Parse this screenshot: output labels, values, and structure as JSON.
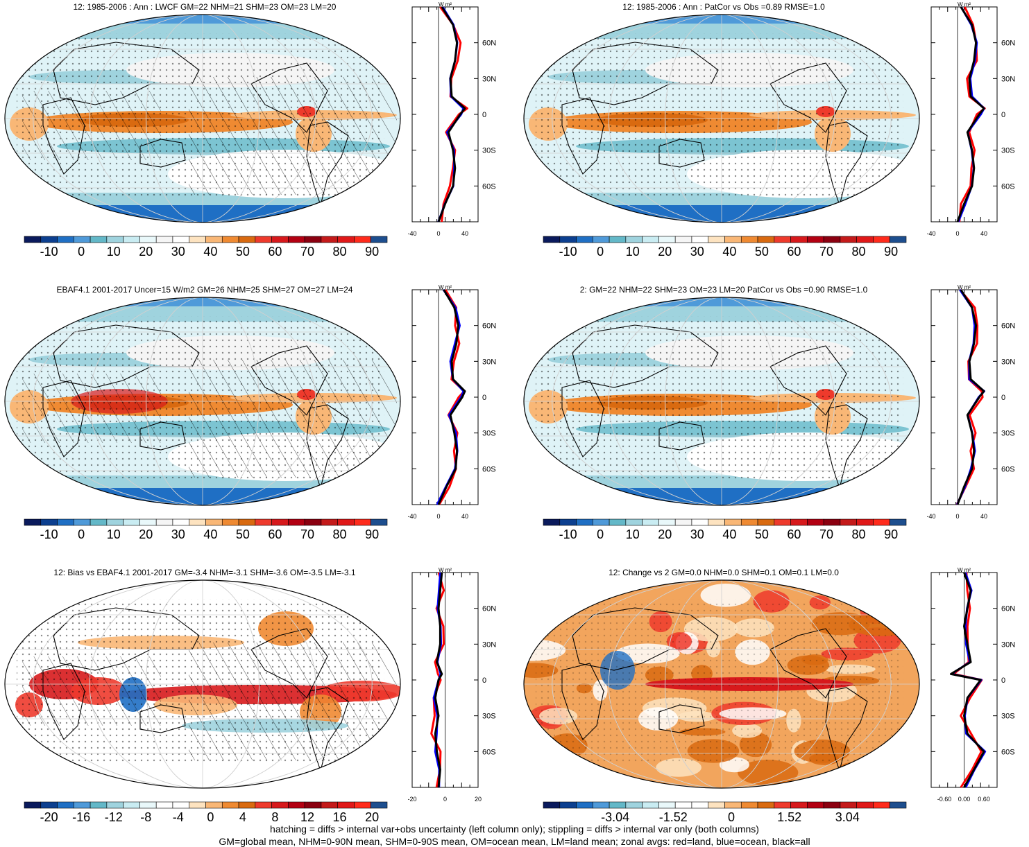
{
  "panels": [
    {
      "id": "p1",
      "title": "12: 1985-2006 : Ann : LWCF GM=22 NHM=21 SHM=23 OM=23 LM=20",
      "scheme": "main",
      "ticks": [
        "-10",
        "0",
        "10",
        "20",
        "30",
        "40",
        "50",
        "60",
        "70",
        "80",
        "90"
      ],
      "zx": [
        "-40",
        "0",
        "40"
      ],
      "zxlim": [
        -40,
        60
      ],
      "hatch": true,
      "variant": 0
    },
    {
      "id": "p2",
      "title": "12: 1985-2006 : Ann : PatCor vs Obs =0.89 RMSE=1.0",
      "scheme": "main",
      "ticks": [
        "-10",
        "0",
        "10",
        "20",
        "30",
        "40",
        "50",
        "60",
        "70",
        "80",
        "90"
      ],
      "zx": [
        "-40",
        "0",
        "40"
      ],
      "zxlim": [
        -40,
        60
      ],
      "hatch": false,
      "variant": 1
    },
    {
      "id": "p3",
      "title": "EBAF4.1 2001-2017 Uncer=15 W/m2 GM=26 NHM=25 SHM=27 OM=27 LM=24",
      "scheme": "main",
      "ticks": [
        "-10",
        "0",
        "10",
        "20",
        "30",
        "40",
        "50",
        "60",
        "70",
        "80",
        "90"
      ],
      "zx": [
        "-40",
        "0",
        "40"
      ],
      "zxlim": [
        -40,
        60
      ],
      "hatch": true,
      "variant": 2
    },
    {
      "id": "p4",
      "title": "2: GM=22 NHM=22 SHM=23 OM=23 LM=20 PatCor vs Obs =0.90 RMSE=1.0",
      "scheme": "main",
      "ticks": [
        "-10",
        "0",
        "10",
        "20",
        "30",
        "40",
        "50",
        "60",
        "70",
        "80",
        "90"
      ],
      "zx": [
        "-40",
        "0",
        "40"
      ],
      "zxlim": [
        -40,
        60
      ],
      "hatch": false,
      "variant": 3
    },
    {
      "id": "p5",
      "title": "12: Bias vs EBAF4.1 2001-2017 GM=-3.4 NHM=-3.1 SHM=-3.6 OM=-3.5 LM=-3.1",
      "scheme": "diff",
      "ticks": [
        "-20",
        "-16",
        "-12",
        "-8",
        "-4",
        "0",
        "4",
        "8",
        "12",
        "16",
        "20"
      ],
      "zx": [
        "-20",
        "0",
        "20"
      ],
      "zxlim": [
        -20,
        20
      ],
      "hatch": true,
      "variant": 4
    },
    {
      "id": "p6",
      "title": "12: Change vs 2 GM=0.0 NHM=0.0 SHM=0.1 OM=0.1 LM=0.0",
      "scheme": "change",
      "ticks": [
        "-3.04",
        "-1.52",
        "0",
        "1.52",
        "3.04"
      ],
      "zx": [
        "-0.60",
        "0.00",
        "0.60"
      ],
      "zxlim": [
        -1,
        1
      ],
      "hatch": false,
      "variant": 5
    }
  ],
  "lat_labels": [
    "60N",
    "30N",
    "0",
    "30S",
    "60S"
  ],
  "zonal_unit": "W m²",
  "colors": {
    "main": [
      "#0a1a5c",
      "#0c3f8f",
      "#1f6fc4",
      "#4f9ad9",
      "#63b8c8",
      "#9fd3de",
      "#c9ecf2",
      "#e9f8fa",
      "#f5f5f5",
      "#ffffff",
      "#fde3c0",
      "#f9b776",
      "#ef8a32",
      "#d96a10",
      "#ee3a2c",
      "#d7191c",
      "#b30012",
      "#8b0010",
      "#c41a1a",
      "#e01818",
      "#ff2b1c",
      "#1d4e8e"
    ],
    "diff": [
      "#0a1a5c",
      "#0c3f8f",
      "#1f6fc4",
      "#4f9ad9",
      "#63b8c8",
      "#9fd3de",
      "#c9ecf2",
      "#e9f8fa",
      "#ffffff",
      "#ffffff",
      "#fde3c0",
      "#f9b776",
      "#ef8a32",
      "#d96a10",
      "#ee3a2c",
      "#d7191c",
      "#b30012",
      "#8b0010",
      "#c41a1a",
      "#e01818",
      "#ff2b1c",
      "#1d4e8e"
    ],
    "land": "#ff0000",
    "ocean": "#0000ff",
    "all": "#000000"
  },
  "chart_data": [
    {
      "type": "map",
      "title": "12: 1985-2006 : Ann : LWCF GM=22 NHM=21 SHM=23 OM=23 LM=20",
      "colorbar_ticks": [
        -10,
        0,
        10,
        20,
        30,
        40,
        50,
        60,
        70,
        80,
        90
      ],
      "zonal_xlim": [
        -40,
        60
      ],
      "zonal_lat": [
        -90,
        -75,
        -60,
        -45,
        -30,
        -15,
        0,
        5,
        15,
        30,
        45,
        60,
        75,
        90
      ],
      "zonal_all": [
        0,
        10,
        22,
        25,
        22,
        15,
        33,
        40,
        20,
        18,
        25,
        28,
        22,
        5
      ]
    },
    {
      "type": "map",
      "title": "12: 1985-2006 : Ann : PatCor vs Obs =0.89 RMSE=1.0",
      "colorbar_ticks": [
        -10,
        0,
        10,
        20,
        30,
        40,
        50,
        60,
        70,
        80,
        90
      ],
      "zonal_xlim": [
        -40,
        60
      ],
      "zonal_lat": [
        -90,
        -75,
        -60,
        -45,
        -30,
        -15,
        0,
        5,
        15,
        30,
        45,
        60,
        75,
        90
      ],
      "zonal_all": [
        0,
        10,
        22,
        25,
        22,
        15,
        33,
        40,
        20,
        18,
        25,
        28,
        22,
        5
      ]
    },
    {
      "type": "map",
      "title": "EBAF4.1 2001-2017 Uncer=15 W/m2 GM=26 NHM=25 SHM=27 OM=27 LM=24",
      "colorbar_ticks": [
        -10,
        0,
        10,
        20,
        30,
        40,
        50,
        60,
        70,
        80,
        90
      ],
      "zonal_xlim": [
        -40,
        60
      ],
      "zonal_lat": [
        -90,
        -75,
        -60,
        -45,
        -30,
        -15,
        0,
        5,
        15,
        30,
        45,
        60,
        75,
        90
      ],
      "zonal_all": [
        0,
        12,
        26,
        28,
        24,
        18,
        36,
        40,
        22,
        20,
        27,
        30,
        24,
        8
      ]
    },
    {
      "type": "map",
      "title": "2: GM=22 NHM=22 SHM=23 OM=23 LM=20 PatCor vs Obs =0.90 RMSE=1.0",
      "colorbar_ticks": [
        -10,
        0,
        10,
        20,
        30,
        40,
        50,
        60,
        70,
        80,
        90
      ],
      "zonal_xlim": [
        -40,
        60
      ],
      "zonal_lat": [
        -90,
        -75,
        -60,
        -45,
        -30,
        -15,
        0,
        5,
        15,
        30,
        45,
        60,
        75,
        90
      ],
      "zonal_all": [
        0,
        10,
        22,
        25,
        22,
        15,
        33,
        40,
        20,
        18,
        25,
        28,
        22,
        5
      ]
    },
    {
      "type": "map",
      "title": "12: Bias vs EBAF4.1 2001-2017 GM=-3.4 NHM=-3.1 SHM=-3.6 OM=-3.5 LM=-3.1",
      "colorbar_ticks": [
        -20,
        -16,
        -12,
        -8,
        -4,
        0,
        4,
        8,
        12,
        16,
        20
      ],
      "zonal_xlim": [
        -20,
        20
      ],
      "zonal_lat": [
        -90,
        -75,
        -60,
        -45,
        -30,
        -15,
        0,
        5,
        15,
        30,
        45,
        60,
        75,
        90
      ],
      "zonal_all": [
        -4,
        -3,
        -5,
        -6,
        -4,
        -6,
        -4,
        -2,
        -5,
        -3,
        -3,
        -4,
        -3,
        -2
      ]
    },
    {
      "type": "map",
      "title": "12: Change vs 2 GM=0.0 NHM=0.0 SHM=0.1 OM=0.1 LM=0.0",
      "colorbar_ticks": [
        -3.04,
        -1.52,
        0,
        1.52,
        3.04
      ],
      "zonal_xlim": [
        -1,
        1
      ],
      "zonal_lat": [
        -90,
        -75,
        -60,
        -45,
        -30,
        -15,
        0,
        5,
        15,
        30,
        45,
        60,
        75,
        90
      ],
      "zonal_all": [
        0,
        0.3,
        0.6,
        0.1,
        0,
        0.1,
        0.5,
        -0.4,
        0.2,
        0.1,
        0.0,
        0.1,
        0.2,
        0
      ]
    }
  ],
  "caption": {
    "line1": "hatching = diffs > internal var+obs uncertainty (left column only); stippling = diffs > internal var only (both columns)",
    "line2": "GM=global mean, NHM=0-90N mean, SHM=0-90S mean, OM=ocean mean, LM=land mean; zonal avgs: red=land, blue=ocean, black=all"
  }
}
